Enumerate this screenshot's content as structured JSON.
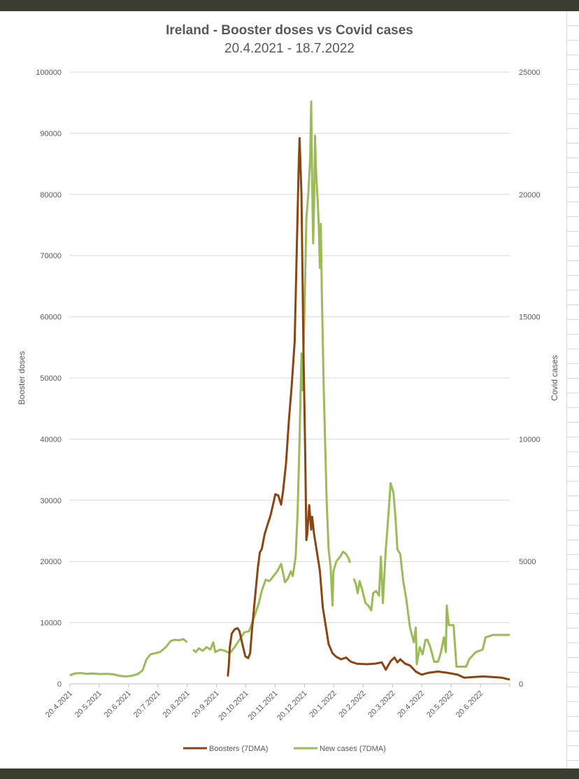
{
  "chart_data": {
    "type": "line",
    "title": "Ireland - Booster doses  vs Covid cases",
    "subtitle": "20.4.2021 - 18.7.2022",
    "ylabel_left": "Booster doses",
    "ylabel_right": "Covid cases",
    "ylim_left": [
      0,
      100000
    ],
    "ylim_right": [
      0,
      25000
    ],
    "y_ticks_left": [
      "0",
      "10000",
      "20000",
      "30000",
      "40000",
      "50000",
      "60000",
      "70000",
      "80000",
      "90000",
      "100000"
    ],
    "y_ticks_right": [
      "0",
      "5000",
      "10000",
      "15000",
      "20000",
      "25000"
    ],
    "x_tick_labels": [
      "20.4.2021",
      "20.5.2021",
      "20.6.2021",
      "20.7.2021",
      "20.8.2021",
      "20.9.2021",
      "20.10.2021",
      "20.11.2021",
      "20.12.2021",
      "20.1.2022",
      "20.2.2022",
      "20.3.2022",
      "20.4.2022",
      "20.5.2022",
      "20.6.2022"
    ],
    "x_range": [
      "2021-04-20",
      "2022-07-18"
    ],
    "grid": "horizontal",
    "legend_position": "bottom",
    "series": [
      {
        "name": "Boosters (7DMA)",
        "axis": "left",
        "color": "#8b4513",
        "points": [
          [
            "2021-09-30",
            1200
          ],
          [
            "2021-10-01",
            3000
          ],
          [
            "2021-10-02",
            6000
          ],
          [
            "2021-10-04",
            8200
          ],
          [
            "2021-10-07",
            8900
          ],
          [
            "2021-10-10",
            9100
          ],
          [
            "2021-10-12",
            8600
          ],
          [
            "2021-10-15",
            6500
          ],
          [
            "2021-10-18",
            4500
          ],
          [
            "2021-10-21",
            4200
          ],
          [
            "2021-10-23",
            5000
          ],
          [
            "2021-10-25",
            9000
          ],
          [
            "2021-10-28",
            14000
          ],
          [
            "2021-10-31",
            19000
          ],
          [
            "2021-11-02",
            21500
          ],
          [
            "2021-11-04",
            22000
          ],
          [
            "2021-11-07",
            24500
          ],
          [
            "2021-11-10",
            26000
          ],
          [
            "2021-11-13",
            27500
          ],
          [
            "2021-11-16",
            29500
          ],
          [
            "2021-11-18",
            31000
          ],
          [
            "2021-11-21",
            30800
          ],
          [
            "2021-11-24",
            29300
          ],
          [
            "2021-11-26",
            31500
          ],
          [
            "2021-11-29",
            36000
          ],
          [
            "2021-12-02",
            43000
          ],
          [
            "2021-12-05",
            49000
          ],
          [
            "2021-12-08",
            56000
          ],
          [
            "2021-12-10",
            70000
          ],
          [
            "2021-12-12",
            84000
          ],
          [
            "2021-12-13",
            89200
          ],
          [
            "2021-12-15",
            80000
          ],
          [
            "2021-12-17",
            55000
          ],
          [
            "2021-12-19",
            36000
          ],
          [
            "2021-12-20",
            23500
          ],
          [
            "2021-12-21",
            24500
          ],
          [
            "2021-12-23",
            29200
          ],
          [
            "2021-12-25",
            25200
          ],
          [
            "2021-12-26",
            27300
          ],
          [
            "2021-12-28",
            24500
          ],
          [
            "2021-12-31",
            21500
          ],
          [
            "2022-01-03",
            18500
          ],
          [
            "2022-01-06",
            12500
          ],
          [
            "2022-01-09",
            9500
          ],
          [
            "2022-01-12",
            6500
          ],
          [
            "2022-01-16",
            5000
          ],
          [
            "2022-01-20",
            4400
          ],
          [
            "2022-01-25",
            4000
          ],
          [
            "2022-01-30",
            4300
          ],
          [
            "2022-02-04",
            3600
          ],
          [
            "2022-02-10",
            3300
          ],
          [
            "2022-02-20",
            3200
          ],
          [
            "2022-03-01",
            3300
          ],
          [
            "2022-03-08",
            3500
          ],
          [
            "2022-03-12",
            2300
          ],
          [
            "2022-03-17",
            3700
          ],
          [
            "2022-03-21",
            4300
          ],
          [
            "2022-03-24",
            3500
          ],
          [
            "2022-03-27",
            4000
          ],
          [
            "2022-04-01",
            3300
          ],
          [
            "2022-04-06",
            3000
          ],
          [
            "2022-04-12",
            2000
          ],
          [
            "2022-04-18",
            1500
          ],
          [
            "2022-04-25",
            1800
          ],
          [
            "2022-05-05",
            2000
          ],
          [
            "2022-05-15",
            1800
          ],
          [
            "2022-05-25",
            1500
          ],
          [
            "2022-06-01",
            1000
          ],
          [
            "2022-06-10",
            1100
          ],
          [
            "2022-06-20",
            1200
          ],
          [
            "2022-07-01",
            1100
          ],
          [
            "2022-07-10",
            1000
          ],
          [
            "2022-07-18",
            700
          ]
        ]
      },
      {
        "name": "New cases (7DMA)",
        "axis": "right",
        "color": "#9bbb59",
        "segments": [
          [
            [
              "2021-04-20",
              350
            ],
            [
              "2021-04-25",
              420
            ],
            [
              "2021-05-01",
              440
            ],
            [
              "2021-05-07",
              410
            ],
            [
              "2021-05-14",
              420
            ],
            [
              "2021-05-21",
              400
            ],
            [
              "2021-05-28",
              410
            ],
            [
              "2021-06-04",
              390
            ],
            [
              "2021-06-10",
              330
            ],
            [
              "2021-06-16",
              300
            ],
            [
              "2021-06-22",
              320
            ],
            [
              "2021-06-29",
              400
            ],
            [
              "2021-07-04",
              550
            ],
            [
              "2021-07-08",
              1000
            ],
            [
              "2021-07-12",
              1200
            ],
            [
              "2021-07-17",
              1250
            ],
            [
              "2021-07-22",
              1300
            ],
            [
              "2021-07-28",
              1500
            ],
            [
              "2021-08-02",
              1750
            ],
            [
              "2021-08-06",
              1800
            ],
            [
              "2021-08-11",
              1780
            ],
            [
              "2021-08-15",
              1830
            ],
            [
              "2021-08-19",
              1700
            ]
          ],
          [
            [
              "2021-08-25",
              1400
            ],
            [
              "2021-08-28",
              1300
            ],
            [
              "2021-08-31",
              1450
            ],
            [
              "2021-09-04",
              1350
            ],
            [
              "2021-09-08",
              1500
            ],
            [
              "2021-09-12",
              1400
            ],
            [
              "2021-09-15",
              1700
            ],
            [
              "2021-09-17",
              1300
            ],
            [
              "2021-09-22",
              1400
            ],
            [
              "2021-09-27",
              1350
            ],
            [
              "2021-10-02",
              1250
            ],
            [
              "2021-10-07",
              1500
            ],
            [
              "2021-10-12",
              1800
            ],
            [
              "2021-10-17",
              2100
            ],
            [
              "2021-10-22",
              2150
            ],
            [
              "2021-10-27",
              2700
            ],
            [
              "2021-11-01",
              3300
            ],
            [
              "2021-11-04",
              3800
            ],
            [
              "2021-11-08",
              4250
            ],
            [
              "2021-11-12",
              4200
            ],
            [
              "2021-11-16",
              4400
            ],
            [
              "2021-11-20",
              4600
            ],
            [
              "2021-11-24",
              4900
            ],
            [
              "2021-11-28",
              4150
            ],
            [
              "2021-12-01",
              4300
            ],
            [
              "2021-12-04",
              4600
            ],
            [
              "2021-12-06",
              4400
            ],
            [
              "2021-12-09",
              5200
            ],
            [
              "2021-12-11",
              7000
            ],
            [
              "2021-12-13",
              10000
            ],
            [
              "2021-12-15",
              13500
            ],
            [
              "2021-12-16",
              12000
            ],
            [
              "2021-12-18",
              15000
            ],
            [
              "2021-12-20",
              19000
            ],
            [
              "2021-12-22",
              20000
            ],
            [
              "2021-12-24",
              21500
            ],
            [
              "2021-12-25",
              23800
            ],
            [
              "2021-12-26",
              20500
            ],
            [
              "2021-12-27",
              18000
            ],
            [
              "2021-12-28",
              19500
            ],
            [
              "2021-12-29",
              22400
            ],
            [
              "2021-12-30",
              21000
            ],
            [
              "2022-01-01",
              19500
            ],
            [
              "2022-01-02",
              18500
            ],
            [
              "2022-01-03",
              17000
            ],
            [
              "2022-01-04",
              18800
            ],
            [
              "2022-01-05",
              16000
            ],
            [
              "2022-01-07",
              12000
            ],
            [
              "2022-01-10",
              7500
            ],
            [
              "2022-01-12",
              5500
            ],
            [
              "2022-01-14",
              4800
            ],
            [
              "2022-01-16",
              3200
            ],
            [
              "2022-01-17",
              4600
            ],
            [
              "2022-01-20",
              5000
            ],
            [
              "2022-01-24",
              5200
            ],
            [
              "2022-01-27",
              5400
            ],
            [
              "2022-01-30",
              5300
            ],
            [
              "2022-02-02",
              5100
            ],
            [
              "2022-02-03",
              4950
            ]
          ],
          [
            [
              "2022-02-07",
              4300
            ],
            [
              "2022-02-09",
              4100
            ],
            [
              "2022-02-11",
              3700
            ],
            [
              "2022-02-13",
              4200
            ],
            [
              "2022-02-16",
              3800
            ],
            [
              "2022-02-19",
              3300
            ],
            [
              "2022-02-22",
              3200
            ],
            [
              "2022-02-25",
              3000
            ],
            [
              "2022-02-27",
              3700
            ],
            [
              "2022-03-02",
              3800
            ],
            [
              "2022-03-05",
              3600
            ],
            [
              "2022-03-07",
              5200
            ],
            [
              "2022-03-09",
              3300
            ],
            [
              "2022-03-12",
              5500
            ],
            [
              "2022-03-14",
              6500
            ],
            [
              "2022-03-17",
              8200
            ],
            [
              "2022-03-20",
              7800
            ],
            [
              "2022-03-22",
              6800
            ],
            [
              "2022-03-24",
              5500
            ],
            [
              "2022-03-27",
              5300
            ],
            [
              "2022-03-30",
              4200
            ],
            [
              "2022-04-02",
              3500
            ],
            [
              "2022-04-06",
              2300
            ],
            [
              "2022-04-10",
              1700
            ],
            [
              "2022-04-12",
              2300
            ],
            [
              "2022-04-13",
              800
            ],
            [
              "2022-04-16",
              1500
            ],
            [
              "2022-04-19",
              1200
            ],
            [
              "2022-04-22",
              1800
            ],
            [
              "2022-04-24",
              1800
            ],
            [
              "2022-04-27",
              1500
            ],
            [
              "2022-05-01",
              900
            ],
            [
              "2022-05-05",
              900
            ],
            [
              "2022-05-08",
              1300
            ],
            [
              "2022-05-11",
              1900
            ],
            [
              "2022-05-13",
              1300
            ],
            [
              "2022-05-14",
              3200
            ],
            [
              "2022-05-16",
              2400
            ],
            [
              "2022-05-21",
              2400
            ],
            [
              "2022-05-24",
              700
            ],
            [
              "2022-06-03",
              700
            ],
            [
              "2022-06-06",
              1000
            ],
            [
              "2022-06-13",
              1300
            ],
            [
              "2022-06-20",
              1400
            ],
            [
              "2022-06-23",
              1900
            ],
            [
              "2022-07-01",
              2000
            ],
            [
              "2022-07-18",
              2000
            ]
          ]
        ]
      }
    ]
  }
}
